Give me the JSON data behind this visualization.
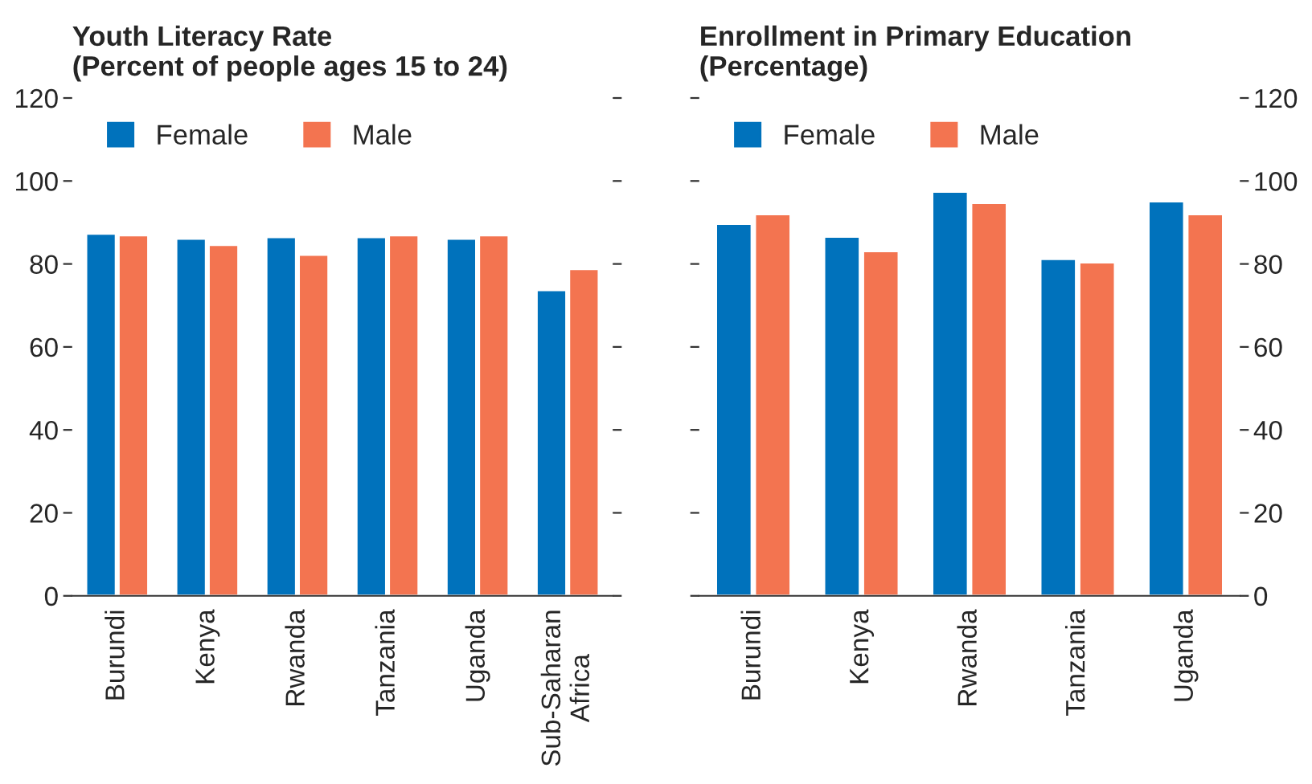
{
  "chart_data": [
    {
      "type": "bar",
      "title": "Youth Literacy Rate\n(Percent of people ages 15 to 24)",
      "categories": [
        "Burundi",
        "Kenya",
        "Rwanda",
        "Tanzania",
        "Uganda",
        "Sub-Saharan\nAfrica"
      ],
      "series": [
        {
          "name": "Female",
          "color": "#0072bc",
          "values": [
            87.3,
            86.1,
            86.5,
            86.5,
            86.1,
            73.7
          ]
        },
        {
          "name": "Male",
          "color": "#f37450",
          "values": [
            86.9,
            84.6,
            82.2,
            86.9,
            86.9,
            78.8
          ]
        }
      ],
      "ylim": [
        0,
        120
      ],
      "yticks": [
        0,
        20,
        40,
        60,
        80,
        100,
        120
      ],
      "grid": false,
      "legend": "top left"
    },
    {
      "type": "bar",
      "title": "Enrollment in Primary Education\n(Percentage)",
      "categories": [
        "Burundi",
        "Kenya",
        "Rwanda",
        "Tanzania",
        "Uganda"
      ],
      "series": [
        {
          "name": "Female",
          "color": "#0072bc",
          "values": [
            89.7,
            86.6,
            97.4,
            81.2,
            95.1
          ]
        },
        {
          "name": "Male",
          "color": "#f37450",
          "values": [
            92.0,
            83.1,
            94.7,
            80.4,
            92.0
          ]
        }
      ],
      "ylim": [
        0,
        120
      ],
      "yticks": [
        0,
        20,
        40,
        60,
        80,
        100,
        120
      ],
      "grid": false,
      "legend": "top left"
    }
  ]
}
